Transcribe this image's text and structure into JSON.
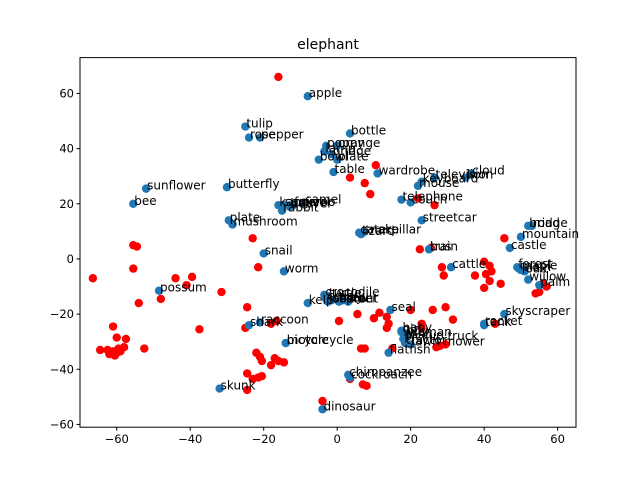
{
  "chart_data": {
    "type": "scatter",
    "title": "elephant",
    "xlabel": "",
    "ylabel": "",
    "xlim": [
      -70,
      65
    ],
    "ylim": [
      -61,
      73
    ],
    "xticks": [
      -60,
      -40,
      -20,
      0,
      20,
      40,
      60
    ],
    "yticks": [
      -60,
      -40,
      -20,
      0,
      20,
      40,
      60
    ],
    "grid": false,
    "colors": {
      "labeled": "#1f77b4",
      "unlabeled": "#ff0000"
    },
    "labeled_points": [
      {
        "label": "apple",
        "x": -8,
        "y": 59
      },
      {
        "label": "tulip",
        "x": -25,
        "y": 48
      },
      {
        "label": "rose",
        "x": -24,
        "y": 44
      },
      {
        "label": "pepper",
        "x": -21,
        "y": 44
      },
      {
        "label": "bottle",
        "x": 3.5,
        "y": 45.5
      },
      {
        "label": "poppy",
        "x": -3,
        "y": 41
      },
      {
        "label": "orange",
        "x": 0,
        "y": 41
      },
      {
        "label": "lamp",
        "x": -3.5,
        "y": 39
      },
      {
        "label": "bridge",
        "x": -1.5,
        "y": 38
      },
      {
        "label": "bowl",
        "x": -5,
        "y": 36
      },
      {
        "label": "plate",
        "x": 0,
        "y": 36
      },
      {
        "label": "table",
        "x": -1,
        "y": 31.5
      },
      {
        "label": "wardrobe",
        "x": 11,
        "y": 31
      },
      {
        "label": "cloud",
        "x": 36.5,
        "y": 31
      },
      {
        "label": "television",
        "x": 26.5,
        "y": 29.5
      },
      {
        "label": "lion",
        "x": 35,
        "y": 29.5
      },
      {
        "label": "keyboard",
        "x": 23,
        "y": 28
      },
      {
        "label": "mouse",
        "x": 22,
        "y": 26.5
      },
      {
        "label": "telephone",
        "x": 17.5,
        "y": 21.5
      },
      {
        "label": "couch",
        "x": 20,
        "y": 20.5
      },
      {
        "label": "sunflower",
        "x": -52,
        "y": 25.5
      },
      {
        "label": "butterfly",
        "x": -30,
        "y": 26
      },
      {
        "label": "bee",
        "x": -55.5,
        "y": 20
      },
      {
        "label": "camel",
        "x": -9,
        "y": 20.5
      },
      {
        "label": "kangaroo",
        "x": -16,
        "y": 19.5
      },
      {
        "label": "squirrel",
        "x": -14.5,
        "y": 19.5
      },
      {
        "label": "beaver",
        "x": -13,
        "y": 19
      },
      {
        "label": "fox",
        "x": -12,
        "y": 19.5
      },
      {
        "label": "rabbit",
        "x": -15,
        "y": 17.5
      },
      {
        "label": "plate",
        "x": -29.5,
        "y": 14
      },
      {
        "label": "mushroom",
        "x": -28.5,
        "y": 12.5
      },
      {
        "label": "streetcar",
        "x": 23,
        "y": 14
      },
      {
        "label": "caterpillar",
        "x": 6,
        "y": 9.5
      },
      {
        "label": "snake",
        "x": 7,
        "y": 9.5
      },
      {
        "label": "lizard",
        "x": 6.5,
        "y": 9
      },
      {
        "label": "bridge",
        "x": 52,
        "y": 12
      },
      {
        "label": "road",
        "x": 53,
        "y": 12
      },
      {
        "label": "mountain",
        "x": 50,
        "y": 8
      },
      {
        "label": "castle",
        "x": 47,
        "y": 4
      },
      {
        "label": "train",
        "x": 25,
        "y": 3.5
      },
      {
        "label": "bus",
        "x": 25,
        "y": 3.5
      },
      {
        "label": "snail",
        "x": -20,
        "y": 2
      },
      {
        "label": "cattle",
        "x": 31,
        "y": -3
      },
      {
        "label": "forest",
        "x": 49,
        "y": -3
      },
      {
        "label": "maple",
        "x": 49.5,
        "y": -3.5
      },
      {
        "label": "plain",
        "x": 50,
        "y": -4
      },
      {
        "label": "oak",
        "x": 51,
        "y": -4.5
      },
      {
        "label": "worm",
        "x": -14.5,
        "y": -4.5
      },
      {
        "label": "willow",
        "x": 52,
        "y": -7.5
      },
      {
        "label": "palm",
        "x": 55,
        "y": -9.5
      },
      {
        "label": "possum",
        "x": -48.5,
        "y": -11.5
      },
      {
        "label": "crocodile",
        "x": -3.5,
        "y": -13
      },
      {
        "label": "turtle",
        "x": -2.5,
        "y": -13.5
      },
      {
        "label": "crab",
        "x": -3,
        "y": -14.5
      },
      {
        "label": "lobster",
        "x": -2.5,
        "y": -15.5
      },
      {
        "label": "shrew",
        "x": -1.5,
        "y": -15
      },
      {
        "label": "spider",
        "x": 0.5,
        "y": -15.5
      },
      {
        "label": "ray",
        "x": 1.5,
        "y": -15
      },
      {
        "label": "trout",
        "x": 3,
        "y": -15.5
      },
      {
        "label": "kelp",
        "x": -8,
        "y": -16
      },
      {
        "label": "seal",
        "x": 14.5,
        "y": -18.5
      },
      {
        "label": "skyscraper",
        "x": 45.5,
        "y": -20
      },
      {
        "label": "tank",
        "x": 40,
        "y": -24
      },
      {
        "label": "rocket",
        "x": 40,
        "y": -23.5
      },
      {
        "label": "shark",
        "x": -24,
        "y": -24
      },
      {
        "label": "raccoon",
        "x": -21,
        "y": -23
      },
      {
        "label": "motorcycle",
        "x": -14,
        "y": -30.5
      },
      {
        "label": "bicycle",
        "x": -14,
        "y": -30.5
      },
      {
        "label": "baby",
        "x": 17.5,
        "y": -26
      },
      {
        "label": "girl",
        "x": 17.5,
        "y": -26.5
      },
      {
        "label": "boy",
        "x": 18.5,
        "y": -27
      },
      {
        "label": "woman",
        "x": 19,
        "y": -27.5
      },
      {
        "label": "man",
        "x": 18.5,
        "y": -28.5
      },
      {
        "label": "pickup truck",
        "x": 18,
        "y": -29
      },
      {
        "label": "tractor",
        "x": 18.5,
        "y": -30.5
      },
      {
        "label": "lawn mower",
        "x": 20,
        "y": -31
      },
      {
        "label": "flatfish",
        "x": 14,
        "y": -34
      },
      {
        "label": "chimpanzee",
        "x": 3,
        "y": -42
      },
      {
        "label": "cockroach",
        "x": 3.5,
        "y": -43
      },
      {
        "label": "skunk",
        "x": -32,
        "y": -47
      },
      {
        "label": "dinosaur",
        "x": -4,
        "y": -54.5
      }
    ],
    "unlabeled_points": [
      {
        "x": -16,
        "y": 66
      },
      {
        "x": 10.5,
        "y": 34
      },
      {
        "x": 3.5,
        "y": 29.5
      },
      {
        "x": 7.5,
        "y": 27.5
      },
      {
        "x": 9,
        "y": 23.5
      },
      {
        "x": 22,
        "y": 22
      },
      {
        "x": 26.5,
        "y": 19.5
      },
      {
        "x": -23,
        "y": 7.5
      },
      {
        "x": -55.5,
        "y": 5
      },
      {
        "x": -54.5,
        "y": 4.5
      },
      {
        "x": 22.5,
        "y": 3.5
      },
      {
        "x": 25.5,
        "y": 4
      },
      {
        "x": 45.5,
        "y": 7.5
      },
      {
        "x": 40,
        "y": -1
      },
      {
        "x": 41.5,
        "y": -2.5
      },
      {
        "x": 42,
        "y": -4.5
      },
      {
        "x": 40.5,
        "y": -5.5
      },
      {
        "x": 37.5,
        "y": -6
      },
      {
        "x": 41.5,
        "y": -8
      },
      {
        "x": 44.5,
        "y": -9
      },
      {
        "x": 40,
        "y": -10.5
      },
      {
        "x": 56,
        "y": -9
      },
      {
        "x": 57,
        "y": -10
      },
      {
        "x": 54,
        "y": -12.5
      },
      {
        "x": 55,
        "y": -12
      },
      {
        "x": 28.5,
        "y": -3
      },
      {
        "x": 29,
        "y": -6
      },
      {
        "x": -21.5,
        "y": -3
      },
      {
        "x": -55.5,
        "y": -3.5
      },
      {
        "x": -66.5,
        "y": -7
      },
      {
        "x": -44,
        "y": -7
      },
      {
        "x": -39.5,
        "y": -6.5
      },
      {
        "x": -41,
        "y": -9.5
      },
      {
        "x": -48,
        "y": -14.5
      },
      {
        "x": -54,
        "y": -16
      },
      {
        "x": -31.5,
        "y": -12
      },
      {
        "x": -24.5,
        "y": -17.5
      },
      {
        "x": 20,
        "y": -18.5
      },
      {
        "x": 26,
        "y": -18.5
      },
      {
        "x": 29.5,
        "y": -17.5
      },
      {
        "x": 11.5,
        "y": -19.5
      },
      {
        "x": 13.5,
        "y": -21
      },
      {
        "x": 10,
        "y": -21.5
      },
      {
        "x": 5.5,
        "y": -20
      },
      {
        "x": 0.5,
        "y": -22.5
      },
      {
        "x": 31.5,
        "y": -22
      },
      {
        "x": 23,
        "y": -23.5
      },
      {
        "x": 14,
        "y": -23.5
      },
      {
        "x": 13.5,
        "y": -25
      },
      {
        "x": 23,
        "y": -25
      },
      {
        "x": 43,
        "y": -23.5
      },
      {
        "x": -16.5,
        "y": -22.5
      },
      {
        "x": -18,
        "y": -23.5
      },
      {
        "x": -61,
        "y": -24.5
      },
      {
        "x": -37.5,
        "y": -25.5
      },
      {
        "x": -25,
        "y": -25
      },
      {
        "x": -57.5,
        "y": -29
      },
      {
        "x": -60,
        "y": -28.5
      },
      {
        "x": -64.5,
        "y": -33
      },
      {
        "x": -62.5,
        "y": -33
      },
      {
        "x": -61,
        "y": -33.5
      },
      {
        "x": -60,
        "y": -34
      },
      {
        "x": -62,
        "y": -34.5
      },
      {
        "x": -60.5,
        "y": -35
      },
      {
        "x": -59,
        "y": -33.5
      },
      {
        "x": -59.5,
        "y": -32.5
      },
      {
        "x": -58,
        "y": -32
      },
      {
        "x": -52.5,
        "y": -32.5
      },
      {
        "x": -22,
        "y": -34
      },
      {
        "x": -21,
        "y": -35.5
      },
      {
        "x": -17,
        "y": -36
      },
      {
        "x": -16,
        "y": -37
      },
      {
        "x": -14.5,
        "y": -37.5
      },
      {
        "x": -20.5,
        "y": -37
      },
      {
        "x": -18,
        "y": -38.5
      },
      {
        "x": 7.5,
        "y": -32.5
      },
      {
        "x": 6.5,
        "y": -32.5
      },
      {
        "x": 15,
        "y": -32.5
      },
      {
        "x": 28,
        "y": -31.5
      },
      {
        "x": 29.5,
        "y": -31
      },
      {
        "x": 27,
        "y": -32
      },
      {
        "x": -24.5,
        "y": -41.5
      },
      {
        "x": -23,
        "y": -43.5
      },
      {
        "x": -20.5,
        "y": -42.5
      },
      {
        "x": -21.5,
        "y": -43
      },
      {
        "x": 3.5,
        "y": -43.5
      },
      {
        "x": 7,
        "y": -45.5
      },
      {
        "x": 8,
        "y": -46
      },
      {
        "x": -24.5,
        "y": -47.5
      },
      {
        "x": -4,
        "y": -51.5
      }
    ]
  }
}
